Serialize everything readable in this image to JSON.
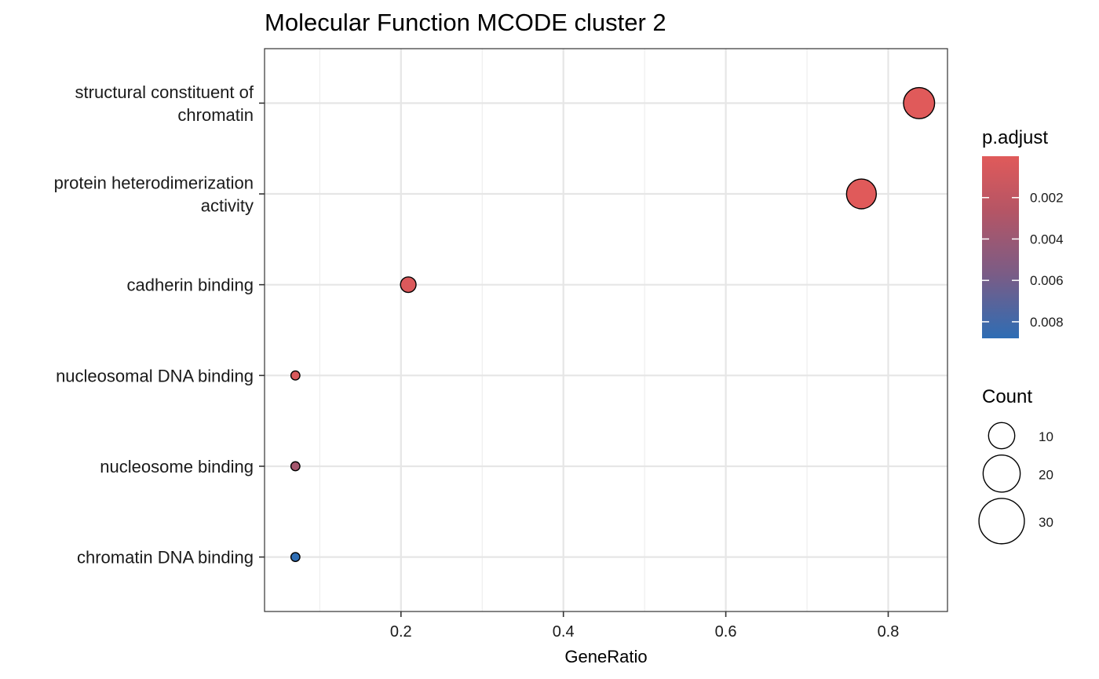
{
  "chart_data": {
    "type": "scatter",
    "title": "Molecular Function MCODE cluster 2",
    "xlabel": "GeneRatio",
    "ylabel": "",
    "xlim": [
      0.032,
      0.873
    ],
    "x_ticks": [
      0.2,
      0.4,
      0.6,
      0.8
    ],
    "x_tick_labels": [
      "0.2",
      "0.4",
      "0.6",
      "0.8"
    ],
    "grid": true,
    "categories": [
      "structural constituent of chromatin",
      "protein heterodimerization activity",
      "cadherin binding",
      "nucleosomal DNA binding",
      "nucleosome binding",
      "chromatin DNA binding"
    ],
    "category_label_lines": [
      [
        "structural constituent of",
        "chromatin"
      ],
      [
        "protein heterodimerization",
        "activity"
      ],
      [
        "cadherin binding"
      ],
      [
        "nucleosomal DNA binding"
      ],
      [
        "nucleosome binding"
      ],
      [
        "chromatin DNA binding"
      ]
    ],
    "points": [
      {
        "category": "structural constituent of chromatin",
        "gene_ratio": 0.838,
        "count": 36,
        "p_adjust": 1e-07
      },
      {
        "category": "protein heterodimerization activity",
        "gene_ratio": 0.767,
        "count": 33,
        "p_adjust": 1e-07
      },
      {
        "category": "cadherin binding",
        "gene_ratio": 0.209,
        "count": 9,
        "p_adjust": 0.0003
      },
      {
        "category": "nucleosomal DNA binding",
        "gene_ratio": 0.07,
        "count": 3,
        "p_adjust": 0.0005
      },
      {
        "category": "nucleosome binding",
        "gene_ratio": 0.07,
        "count": 3,
        "p_adjust": 0.0035
      },
      {
        "category": "chromatin DNA binding",
        "gene_ratio": 0.07,
        "count": 3,
        "p_adjust": 0.0088
      }
    ],
    "color_legend": {
      "title": "p.adjust",
      "range": [
        0.0,
        0.0088
      ],
      "ticks": [
        0.002,
        0.004,
        0.006,
        0.008
      ],
      "tick_labels": [
        "0.002",
        "0.004",
        "0.006",
        "0.008"
      ],
      "low_color": "#E05A5A",
      "high_color": "#2E6DB4"
    },
    "size_legend": {
      "title": "Count",
      "values": [
        10,
        20,
        30
      ],
      "labels": [
        "10",
        "20",
        "30"
      ]
    },
    "legend_position": "right"
  }
}
